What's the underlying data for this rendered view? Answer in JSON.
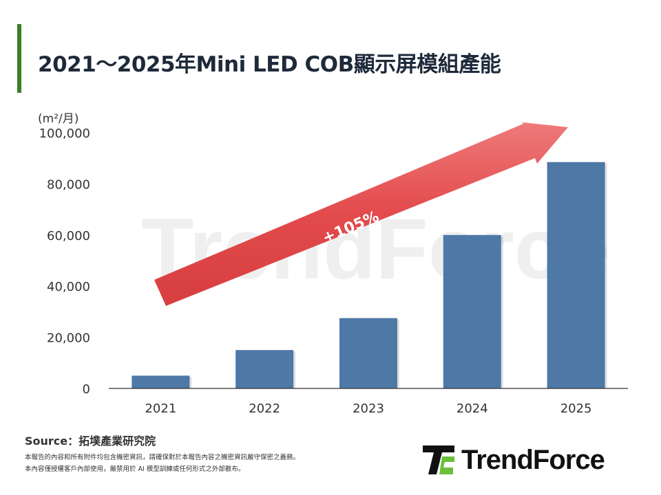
{
  "title": "2021～2025年Mini LED COB顯示屏模組產能",
  "chart_data": {
    "type": "bar",
    "title": "2021～2025年Mini LED COB顯示屏模組產能",
    "ylabel": "(m²/月)",
    "xlabel": "",
    "categories": [
      "2021",
      "2022",
      "2023",
      "2024",
      "2025"
    ],
    "values": [
      5000,
      15000,
      27500,
      60000,
      88500
    ],
    "ylim": [
      0,
      100000
    ],
    "yticks": [
      "0",
      "20,000",
      "40,000",
      "60,000",
      "80,000",
      "100,000"
    ],
    "bar_color": "#4e78a6",
    "grid": false,
    "annotation": {
      "text": "+105%",
      "color": "#e04848"
    }
  },
  "source": "Source：拓墣產業研究院",
  "disclaimer": [
    "本報告的內容和所有附件均包含機密資訊，請確保對於本報告內容之機密資訊嚴守保密之義務。",
    "本內容僅授權客戶內部使用，嚴禁用於 AI 模型訓練或任何形式之外部散布。"
  ],
  "logo": {
    "text": "TrendForce",
    "accent": "#6bbf3a"
  }
}
